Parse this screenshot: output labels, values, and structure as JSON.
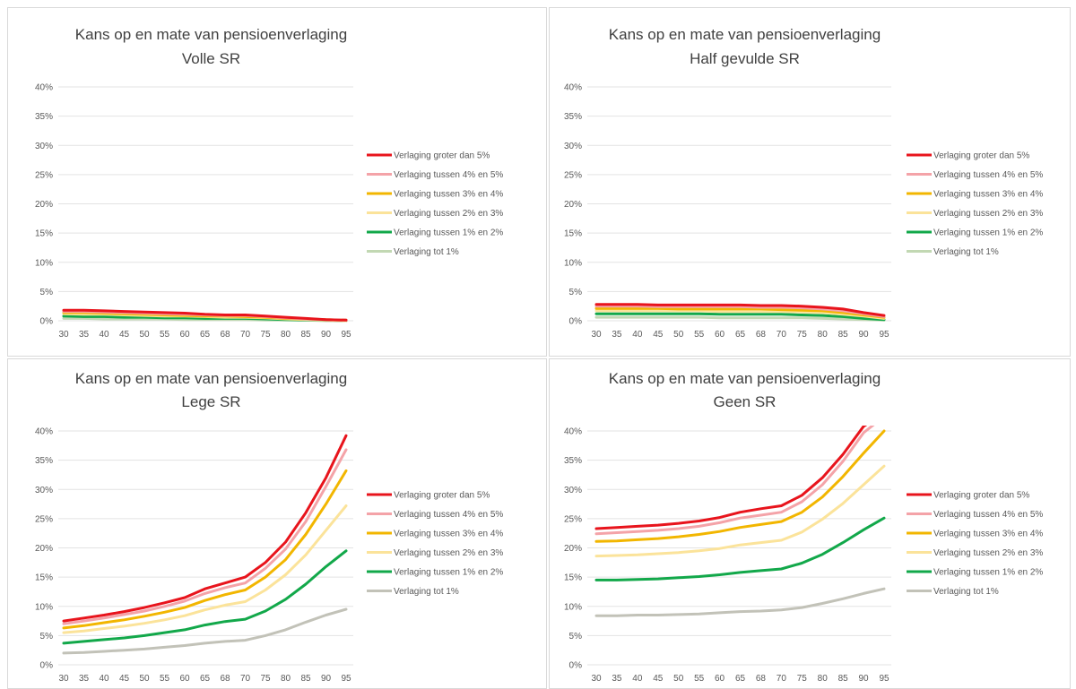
{
  "chart_data": [
    {
      "type": "line",
      "title": "Kans op en mate van pensioenverlaging",
      "subtitle": "Volle SR",
      "categories": [
        "30",
        "35",
        "40",
        "45",
        "50",
        "55",
        "60",
        "65",
        "68",
        "70",
        "75",
        "80",
        "85",
        "90",
        "95"
      ],
      "yticks": [
        "0%",
        "5%",
        "10%",
        "15%",
        "20%",
        "25%",
        "30%",
        "35%",
        "40%"
      ],
      "ylim": [
        0,
        40
      ],
      "legend_position": "right",
      "series": [
        {
          "name": "Verlaging groter dan 5%",
          "color": "#e8141c",
          "values": [
            1.8,
            1.8,
            1.7,
            1.6,
            1.5,
            1.4,
            1.3,
            1.1,
            1.0,
            1.0,
            0.8,
            0.6,
            0.4,
            0.2,
            0.1
          ]
        },
        {
          "name": "Verlaging tussen 4% en 5%",
          "color": "#f4a3a8",
          "values": [
            1.6,
            1.6,
            1.5,
            1.4,
            1.3,
            1.2,
            1.1,
            1.0,
            0.9,
            0.9,
            0.7,
            0.5,
            0.3,
            0.2,
            0.1
          ]
        },
        {
          "name": "Verlaging tussen 3% en 4%",
          "color": "#f2b600",
          "values": [
            1.4,
            1.4,
            1.3,
            1.2,
            1.1,
            1.0,
            0.9,
            0.8,
            0.8,
            0.7,
            0.6,
            0.4,
            0.3,
            0.2,
            0.1
          ]
        },
        {
          "name": "Verlaging tussen 2% en 3%",
          "color": "#fbe39a",
          "values": [
            1.2,
            1.1,
            1.1,
            1.0,
            0.9,
            0.8,
            0.8,
            0.7,
            0.6,
            0.6,
            0.5,
            0.3,
            0.2,
            0.1,
            0.0
          ]
        },
        {
          "name": "Verlaging tussen 1% en 2%",
          "color": "#12a84a",
          "values": [
            0.8,
            0.7,
            0.7,
            0.6,
            0.6,
            0.5,
            0.5,
            0.4,
            0.4,
            0.4,
            0.3,
            0.2,
            0.1,
            0.1,
            0.0
          ]
        },
        {
          "name": "Verlaging tot 1%",
          "color": "#c2d8b3",
          "values": [
            0.4,
            0.4,
            0.3,
            0.3,
            0.3,
            0.3,
            0.2,
            0.2,
            0.2,
            0.2,
            0.1,
            0.1,
            0.1,
            0.0,
            0.0
          ]
        }
      ]
    },
    {
      "type": "line",
      "title": "Kans op en mate van pensioenverlaging",
      "subtitle": "Half gevulde SR",
      "categories": [
        "30",
        "35",
        "40",
        "45",
        "50",
        "55",
        "60",
        "65",
        "68",
        "70",
        "75",
        "80",
        "85",
        "90",
        "95"
      ],
      "yticks": [
        "0%",
        "5%",
        "10%",
        "15%",
        "20%",
        "25%",
        "30%",
        "35%",
        "40%"
      ],
      "ylim": [
        0,
        40
      ],
      "legend_position": "right",
      "series": [
        {
          "name": "Verlaging groter dan 5%",
          "color": "#e8141c",
          "values": [
            2.8,
            2.8,
            2.8,
            2.7,
            2.7,
            2.7,
            2.7,
            2.7,
            2.6,
            2.6,
            2.5,
            2.3,
            2.0,
            1.4,
            0.9
          ]
        },
        {
          "name": "Verlaging tussen 4% en 5%",
          "color": "#f4a3a8",
          "values": [
            2.5,
            2.5,
            2.5,
            2.4,
            2.4,
            2.4,
            2.4,
            2.4,
            2.3,
            2.3,
            2.2,
            2.0,
            1.7,
            1.2,
            0.7
          ]
        },
        {
          "name": "Verlaging tussen 3% en 4%",
          "color": "#f2b600",
          "values": [
            2.1,
            2.1,
            2.1,
            2.1,
            2.0,
            2.0,
            2.0,
            2.0,
            2.0,
            1.9,
            1.8,
            1.7,
            1.4,
            1.0,
            0.6
          ]
        },
        {
          "name": "Verlaging tussen 2% en 3%",
          "color": "#fbe39a",
          "values": [
            1.7,
            1.7,
            1.7,
            1.7,
            1.7,
            1.7,
            1.6,
            1.6,
            1.6,
            1.6,
            1.5,
            1.4,
            1.1,
            0.8,
            0.4
          ]
        },
        {
          "name": "Verlaging tussen 1% en 2%",
          "color": "#12a84a",
          "values": [
            1.2,
            1.2,
            1.2,
            1.2,
            1.2,
            1.2,
            1.1,
            1.1,
            1.1,
            1.1,
            1.0,
            0.9,
            0.7,
            0.4,
            0.2
          ]
        },
        {
          "name": "Verlaging tot 1%",
          "color": "#c2d8b3",
          "values": [
            0.6,
            0.6,
            0.6,
            0.6,
            0.6,
            0.6,
            0.5,
            0.5,
            0.5,
            0.5,
            0.5,
            0.4,
            0.3,
            0.2,
            0.1
          ]
        }
      ]
    },
    {
      "type": "line",
      "title": "Kans op en mate van pensioenverlaging",
      "subtitle": "Lege SR",
      "categories": [
        "30",
        "35",
        "40",
        "45",
        "50",
        "55",
        "60",
        "65",
        "68",
        "70",
        "75",
        "80",
        "85",
        "90",
        "95"
      ],
      "yticks": [
        "0%",
        "5%",
        "10%",
        "15%",
        "20%",
        "25%",
        "30%",
        "35%",
        "40%"
      ],
      "ylim": [
        0,
        40
      ],
      "legend_position": "right",
      "series": [
        {
          "name": "Verlaging groter dan 5%",
          "color": "#e8141c",
          "values": [
            7.5,
            8.0,
            8.5,
            9.1,
            9.8,
            10.6,
            11.5,
            13.0,
            14.0,
            15.0,
            17.5,
            21.0,
            26.0,
            32.0,
            39.2
          ]
        },
        {
          "name": "Verlaging tussen 4% en 5%",
          "color": "#f4a3a8",
          "values": [
            7.0,
            7.5,
            8.0,
            8.6,
            9.2,
            10.0,
            10.9,
            12.2,
            13.2,
            14.0,
            16.5,
            19.8,
            24.5,
            30.5,
            36.8
          ]
        },
        {
          "name": "Verlaging tussen 3% en 4%",
          "color": "#f2b600",
          "values": [
            6.3,
            6.7,
            7.2,
            7.7,
            8.3,
            9.0,
            9.8,
            11.0,
            12.0,
            12.8,
            15.0,
            18.0,
            22.3,
            27.5,
            33.2
          ]
        },
        {
          "name": "Verlaging tussen 2% en 3%",
          "color": "#fbe39a",
          "values": [
            5.5,
            5.8,
            6.2,
            6.6,
            7.1,
            7.7,
            8.4,
            9.4,
            10.2,
            10.8,
            12.8,
            15.4,
            18.8,
            23.0,
            27.2
          ]
        },
        {
          "name": "Verlaging tussen 1% en 2%",
          "color": "#12a84a",
          "values": [
            3.7,
            4.0,
            4.3,
            4.6,
            5.0,
            5.5,
            6.0,
            6.8,
            7.4,
            7.8,
            9.2,
            11.2,
            13.8,
            16.8,
            19.5
          ]
        },
        {
          "name": "Verlaging tot 1%",
          "color": "#c2c2b8",
          "values": [
            2.0,
            2.1,
            2.3,
            2.5,
            2.7,
            3.0,
            3.3,
            3.7,
            4.0,
            4.2,
            5.0,
            6.0,
            7.3,
            8.5,
            9.5
          ]
        }
      ]
    },
    {
      "type": "line",
      "title": "Kans op en mate van pensioenverlaging",
      "subtitle": "Geen SR",
      "categories": [
        "30",
        "35",
        "40",
        "45",
        "50",
        "55",
        "60",
        "65",
        "68",
        "70",
        "75",
        "80",
        "85",
        "90",
        "95"
      ],
      "yticks": [
        "0%",
        "5%",
        "10%",
        "15%",
        "20%",
        "25%",
        "30%",
        "35%",
        "40%"
      ],
      "ylim": [
        0,
        40
      ],
      "legend_position": "right",
      "series": [
        {
          "name": "Verlaging groter dan 5%",
          "color": "#e8141c",
          "values": [
            23.3,
            23.5,
            23.7,
            23.9,
            24.2,
            24.6,
            25.2,
            26.1,
            26.7,
            27.2,
            29.0,
            32.0,
            36.0,
            40.8,
            43.0
          ]
        },
        {
          "name": "Verlaging tussen 4% en 5%",
          "color": "#f4a3a8",
          "values": [
            22.4,
            22.6,
            22.8,
            23.0,
            23.3,
            23.7,
            24.3,
            25.1,
            25.6,
            26.1,
            27.9,
            30.8,
            34.8,
            39.7,
            42.5
          ]
        },
        {
          "name": "Verlaging tussen 3% en 4%",
          "color": "#f2b600",
          "values": [
            21.1,
            21.2,
            21.4,
            21.6,
            21.9,
            22.3,
            22.8,
            23.5,
            24.0,
            24.5,
            26.1,
            28.7,
            32.2,
            36.2,
            40.0
          ]
        },
        {
          "name": "Verlaging tussen 2% en 3%",
          "color": "#fbe39a",
          "values": [
            18.6,
            18.7,
            18.8,
            19.0,
            19.2,
            19.5,
            19.9,
            20.5,
            20.9,
            21.3,
            22.7,
            24.9,
            27.6,
            30.8,
            34.0
          ]
        },
        {
          "name": "Verlaging tussen 1% en 2%",
          "color": "#12a84a",
          "values": [
            14.5,
            14.5,
            14.6,
            14.7,
            14.9,
            15.1,
            15.4,
            15.8,
            16.1,
            16.4,
            17.4,
            18.9,
            20.9,
            23.1,
            25.1
          ]
        },
        {
          "name": "Verlaging tot 1%",
          "color": "#c2c2b8",
          "values": [
            8.4,
            8.4,
            8.5,
            8.5,
            8.6,
            8.7,
            8.9,
            9.1,
            9.2,
            9.4,
            9.8,
            10.5,
            11.3,
            12.2,
            13.0
          ]
        }
      ]
    }
  ]
}
